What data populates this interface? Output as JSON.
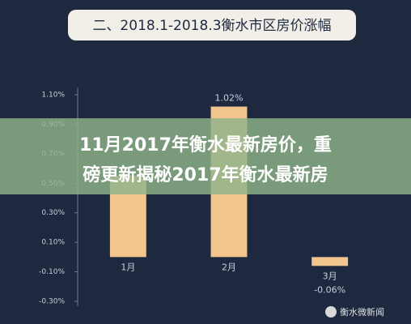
{
  "chart_data": {
    "type": "bar",
    "title": "二、2018.1-2018.3衡水市区房价涨幅",
    "categories": [
      "1月",
      "2月",
      "3月"
    ],
    "values": [
      0.55,
      1.02,
      -0.06
    ],
    "value_labels": [
      null,
      "1.02%",
      "-0.06%"
    ],
    "color": "#f2c48e",
    "ylim": [
      -0.3,
      1.1
    ],
    "yticks": [
      {
        "value": 1.1,
        "label": "1.10%"
      },
      {
        "value": 0.9,
        "label": "0.90%"
      },
      {
        "value": 0.7,
        "label": "0.70%"
      },
      {
        "value": 0.5,
        "label": "0.50%"
      },
      {
        "value": 0.3,
        "label": "0.30%"
      },
      {
        "value": 0.1,
        "label": "0.10%"
      },
      {
        "value": -0.1,
        "label": "-0.10%"
      },
      {
        "value": -0.3,
        "label": "-0.30%"
      }
    ],
    "grid": false
  },
  "overlay": {
    "lines": [
      "11月2017年衡水最新房价，重",
      "磅更新揭秘2017年衡水最新房"
    ]
  },
  "watermark": "衡水微新闻"
}
